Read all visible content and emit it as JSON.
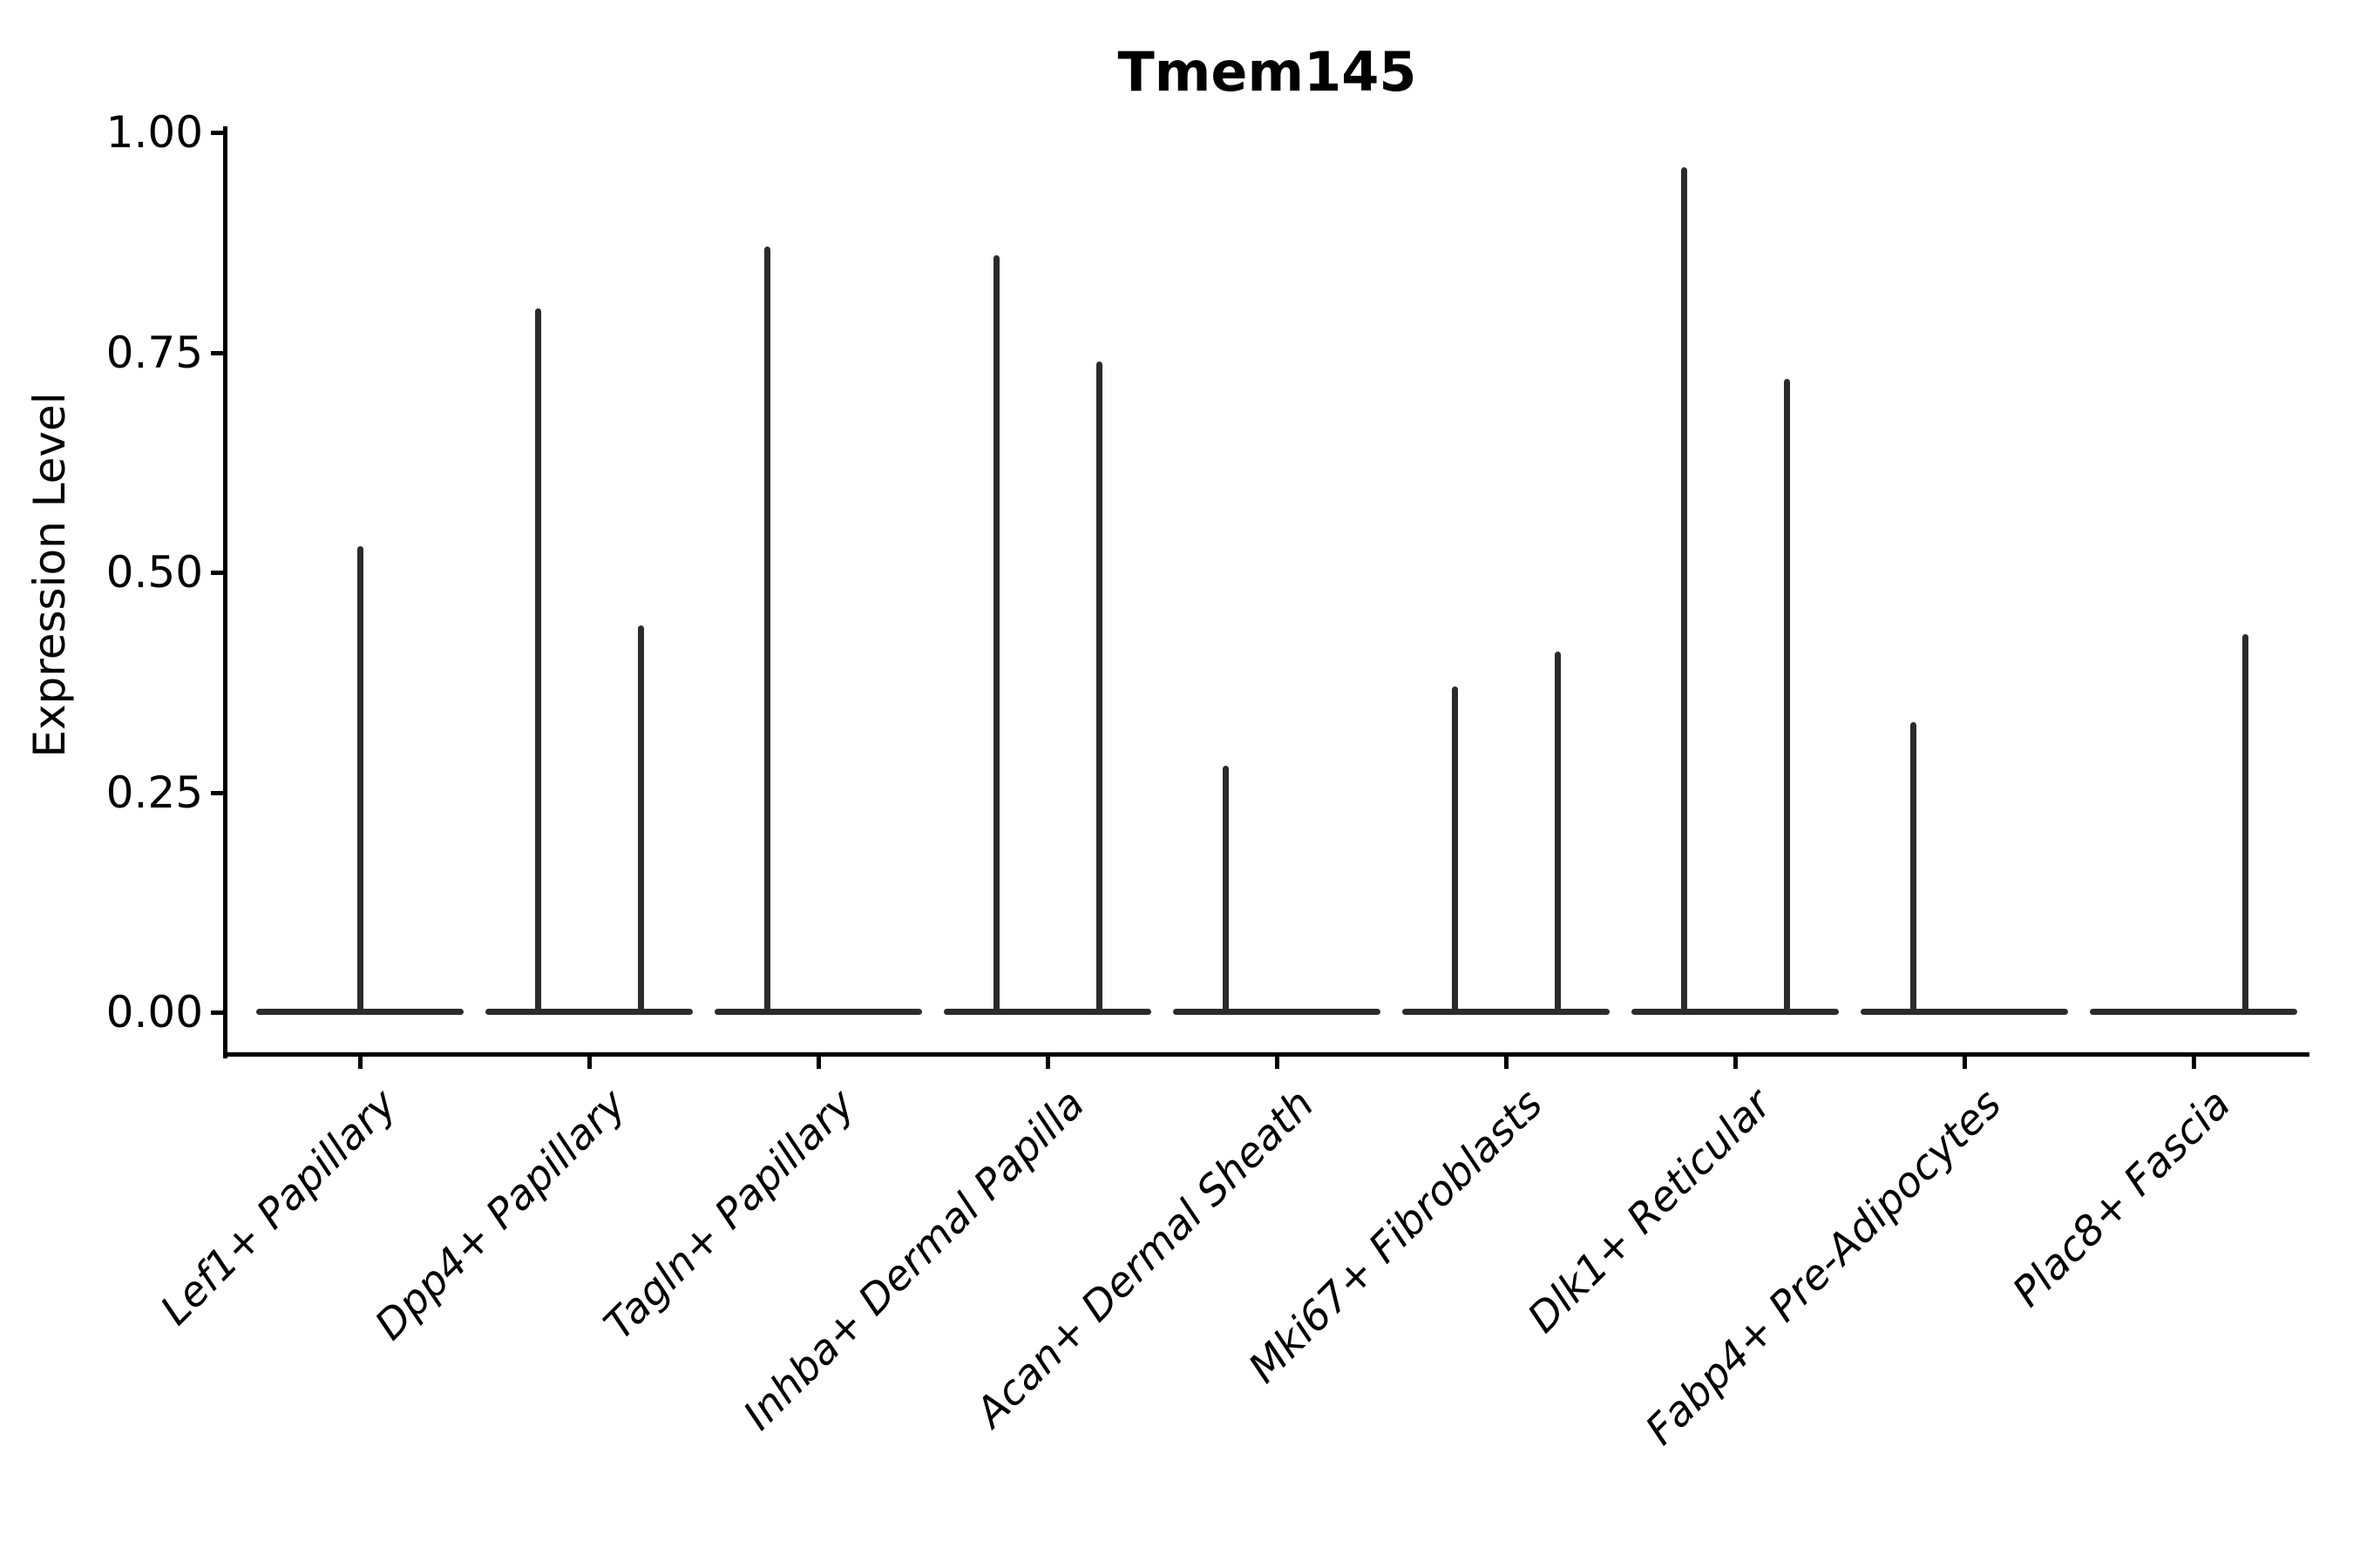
{
  "title": "Tmem145",
  "y_axis": {
    "label": "Expression Level",
    "ticks": [
      {
        "label": "0.00",
        "value": 0.0
      },
      {
        "label": "0.25",
        "value": 0.25
      },
      {
        "label": "0.50",
        "value": 0.5
      },
      {
        "label": "0.75",
        "value": 0.75
      },
      {
        "label": "1.00",
        "value": 1.0
      }
    ]
  },
  "chart_data": {
    "type": "violin",
    "title": "Tmem145",
    "xlabel": "",
    "ylabel": "Expression Level",
    "ylim": [
      -0.05,
      1.01
    ],
    "yticks": [
      0.0,
      0.25,
      0.5,
      0.75,
      1.0
    ],
    "grid": false,
    "legend": "none",
    "description": "Sparse expression violins: wide flat density base at 0 with thin spikes up to the max expression value; some categories contain two side-by-side sub-violins (left/right).",
    "categories": [
      "Lef1+ Papillary",
      "Dpp4+ Papillary",
      "Tagln+ Papillary",
      "Inhba+ Dermal Papilla",
      "Acan+ Dermal Sheath",
      "Mki67+ Fibroblasts",
      "Dlk1+ Reticular",
      "Fabp4+ Pre-Adipocytes",
      "Plac8+ Fascia"
    ],
    "series": [
      {
        "category": "Lef1+ Papillary",
        "violins": [
          {
            "side": "full",
            "max_expression": 0.53
          }
        ]
      },
      {
        "category": "Dpp4+ Papillary",
        "violins": [
          {
            "side": "left",
            "max_expression": 0.8
          },
          {
            "side": "right",
            "max_expression": 0.44
          }
        ]
      },
      {
        "category": "Tagln+ Papillary",
        "violins": [
          {
            "side": "left",
            "max_expression": 0.87
          }
        ]
      },
      {
        "category": "Inhba+ Dermal Papilla",
        "violins": [
          {
            "side": "left",
            "max_expression": 0.86
          },
          {
            "side": "right",
            "max_expression": 0.74
          }
        ]
      },
      {
        "category": "Acan+ Dermal Sheath",
        "violins": [
          {
            "side": "left",
            "max_expression": 0.28
          }
        ]
      },
      {
        "category": "Mki67+ Fibroblasts",
        "violins": [
          {
            "side": "left",
            "max_expression": 0.37
          },
          {
            "side": "right",
            "max_expression": 0.41
          }
        ]
      },
      {
        "category": "Dlk1+ Reticular",
        "violins": [
          {
            "side": "left",
            "max_expression": 0.96
          },
          {
            "side": "right",
            "max_expression": 0.72
          }
        ]
      },
      {
        "category": "Fabp4+ Pre-Adipocytes",
        "violins": [
          {
            "side": "left",
            "max_expression": 0.33
          }
        ]
      },
      {
        "category": "Plac8+ Fascia",
        "violins": [
          {
            "side": "right",
            "max_expression": 0.43
          }
        ]
      }
    ],
    "style": {
      "violin_color": "#2b2b2b",
      "axis_color": "#000000",
      "text_color": "#000000",
      "background": "#ffffff"
    }
  }
}
